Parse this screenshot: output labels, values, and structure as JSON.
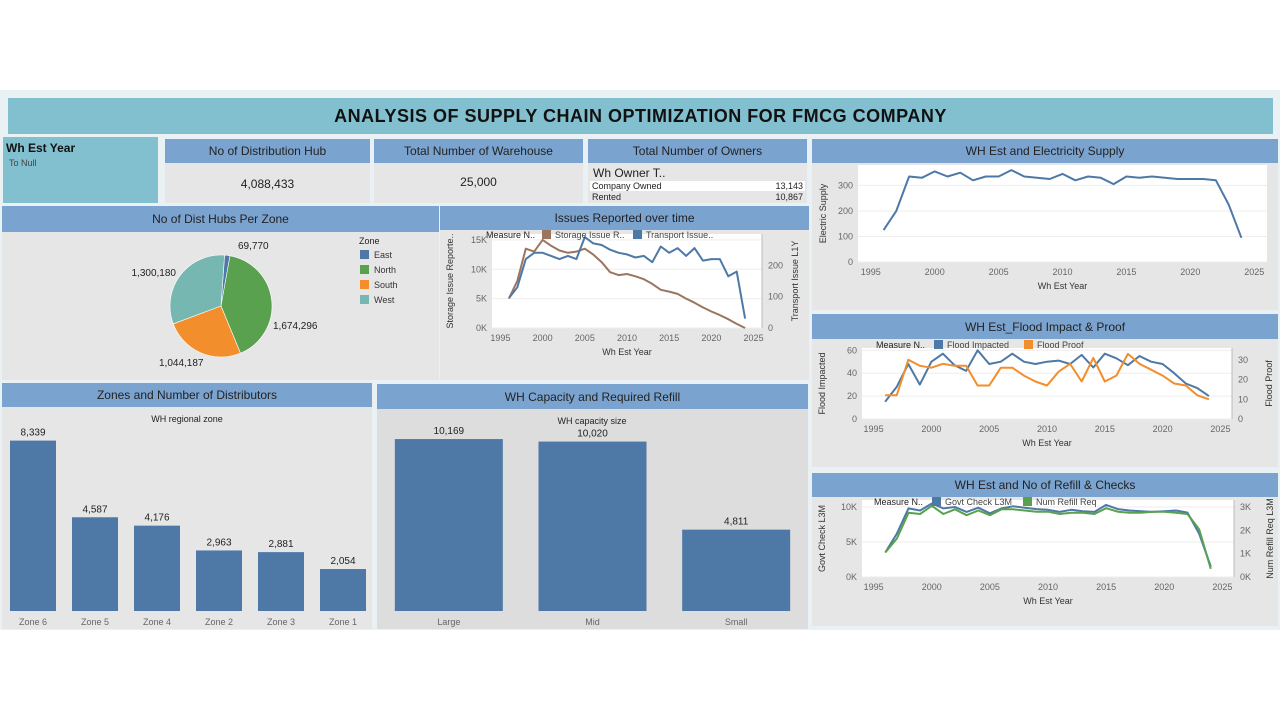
{
  "title": "ANALYSIS OF SUPPLY CHAIN OPTIMIZATION FOR FMCG COMPANY",
  "filter": {
    "label": "Wh Est Year",
    "value": "To Null"
  },
  "kpis": {
    "hub": {
      "title": "No of Distribution Hub",
      "value": "4,088,433"
    },
    "warehouse": {
      "title": "Total Number of Warehouse",
      "value": "25,000"
    },
    "owners": {
      "title": "Total Number of Owners",
      "subtitle": "Wh Owner T..",
      "rows": [
        {
          "label": "Company Owned",
          "value": "13,143",
          "fraction": 1.0
        },
        {
          "label": "Rented",
          "value": "10,867",
          "fraction": 0.827
        }
      ]
    }
  },
  "colors": {
    "blue": "#4e79a7",
    "orange": "#f28e2b",
    "green": "#59a14f",
    "teal": "#76b7b2",
    "brown": "#9c755f",
    "header": "#7ba3cf",
    "title_bg": "#82bfcf"
  },
  "chart_data": [
    {
      "id": "pie",
      "type": "pie",
      "title": "No of Dist Hubs Per Zone",
      "legend_title": "Zone",
      "legend_position": "right",
      "slices": [
        {
          "name": "East",
          "value": 69770,
          "label": "69,770",
          "color": "#4e79a7"
        },
        {
          "name": "North",
          "value": 1674296,
          "label": "1,674,296",
          "color": "#59a14f"
        },
        {
          "name": "South",
          "value": 1044187,
          "label": "1,044,187",
          "color": "#f28e2b"
        },
        {
          "name": "West",
          "value": 1300180,
          "label": "1,300,180",
          "color": "#76b7b2"
        }
      ]
    },
    {
      "id": "issues",
      "type": "line",
      "title": "Issues Reported over time",
      "legend_title": "Measure N..",
      "xlabel": "Wh Est Year",
      "ylabel": "Storage Issue Reporte..",
      "y2label": "Transport Issue L1Y",
      "xticks": [
        "1995",
        "2000",
        "2005",
        "2010",
        "2015",
        "2020",
        "2025"
      ],
      "yticks": [
        "0K",
        "5K",
        "10K",
        "15K"
      ],
      "y2ticks": [
        "0",
        "100",
        "200"
      ],
      "xlim": [
        1994,
        2026
      ],
      "ylim": [
        0,
        16000
      ],
      "y2lim": [
        0,
        300
      ],
      "x": [
        1996,
        1997,
        1998,
        1999,
        2000,
        2001,
        2002,
        2003,
        2004,
        2005,
        2006,
        2007,
        2008,
        2009,
        2010,
        2011,
        2012,
        2013,
        2014,
        2015,
        2016,
        2017,
        2018,
        2019,
        2020,
        2021,
        2022,
        2023,
        2024
      ],
      "series": [
        {
          "name": "Storage Issue R..",
          "axis": "left",
          "color": "#9c755f",
          "values": [
            5000,
            8000,
            13500,
            13000,
            15000,
            14000,
            13200,
            12800,
            13000,
            13500,
            12500,
            11200,
            9500,
            9000,
            9200,
            8800,
            8300,
            7500,
            6500,
            6200,
            5800,
            5000,
            4300,
            3500,
            2800,
            2200,
            1500,
            700,
            0
          ]
        },
        {
          "name": "Transport Issue..",
          "axis": "right",
          "color": "#4e79a7",
          "values": [
            95,
            130,
            220,
            240,
            240,
            230,
            220,
            230,
            220,
            290,
            270,
            265,
            250,
            240,
            235,
            225,
            230,
            210,
            260,
            240,
            255,
            230,
            255,
            215,
            220,
            220,
            165,
            180,
            30
          ]
        }
      ]
    },
    {
      "id": "electricity",
      "type": "line",
      "title": "WH Est and Electricity Supply",
      "xlabel": "Wh Est Year",
      "ylabel": "Electric Supply",
      "xticks": [
        "1995",
        "2000",
        "2005",
        "2010",
        "2015",
        "2020",
        "2025"
      ],
      "yticks": [
        "0",
        "100",
        "200",
        "300"
      ],
      "xlim": [
        1994,
        2026
      ],
      "ylim": [
        0,
        380
      ],
      "x": [
        1996,
        1997,
        1998,
        1999,
        2000,
        2001,
        2002,
        2003,
        2004,
        2005,
        2006,
        2007,
        2008,
        2009,
        2010,
        2011,
        2012,
        2013,
        2014,
        2015,
        2016,
        2017,
        2018,
        2019,
        2020,
        2021,
        2022,
        2023,
        2024
      ],
      "series": [
        {
          "name": "Electric Supply",
          "color": "#4e79a7",
          "values": [
            125,
            200,
            335,
            330,
            355,
            335,
            350,
            320,
            335,
            335,
            360,
            335,
            330,
            325,
            345,
            320,
            335,
            330,
            305,
            335,
            330,
            335,
            330,
            325,
            325,
            325,
            320,
            225,
            95
          ]
        }
      ]
    },
    {
      "id": "flood",
      "type": "line",
      "title": "WH Est_Flood Impact & Proof",
      "legend_title": "Measure N..",
      "xlabel": "Wh Est Year",
      "ylabel": "Flood Impacted",
      "y2label": "Flood Proof",
      "xticks": [
        "1995",
        "2000",
        "2005",
        "2010",
        "2015",
        "2020",
        "2025"
      ],
      "yticks": [
        "0",
        "20",
        "40",
        "60"
      ],
      "y2ticks": [
        "0",
        "10",
        "20",
        "30"
      ],
      "xlim": [
        1994,
        2026
      ],
      "ylim": [
        0,
        62
      ],
      "y2lim": [
        0,
        36
      ],
      "x": [
        1996,
        1997,
        1998,
        1999,
        2000,
        2001,
        2002,
        2003,
        2004,
        2005,
        2006,
        2007,
        2008,
        2009,
        2010,
        2011,
        2012,
        2013,
        2014,
        2015,
        2016,
        2017,
        2018,
        2019,
        2020,
        2021,
        2022,
        2023,
        2024
      ],
      "series": [
        {
          "name": "Flood Impacted",
          "axis": "left",
          "color": "#4e79a7",
          "values": [
            15,
            28,
            48,
            30,
            50,
            57,
            47,
            42,
            60,
            48,
            50,
            57,
            50,
            48,
            50,
            51,
            48,
            56,
            45,
            57,
            53,
            47,
            55,
            50,
            48,
            40,
            31,
            27,
            20
          ]
        },
        {
          "name": "Flood Proof",
          "axis": "right",
          "color": "#f28e2b",
          "values": [
            12,
            12,
            30,
            27,
            26,
            28,
            27,
            27,
            17,
            17,
            26,
            26,
            22,
            19,
            17,
            24,
            28,
            19,
            31,
            19,
            22,
            33,
            28,
            25,
            22,
            18,
            17,
            12,
            10
          ]
        }
      ]
    },
    {
      "id": "refill",
      "type": "line",
      "title": "WH Est and No of Refill & Checks",
      "legend_title": "Measure N..",
      "xlabel": "Wh Est Year",
      "ylabel": "Govt Check L3M",
      "y2label": "Num Refill Req L3M",
      "xticks": [
        "1995",
        "2000",
        "2005",
        "2010",
        "2015",
        "2020",
        "2025"
      ],
      "yticks": [
        "0K",
        "5K",
        "10K"
      ],
      "y2ticks": [
        "0K",
        "1K",
        "2K",
        "3K"
      ],
      "xlim": [
        1994,
        2026
      ],
      "ylim": [
        0,
        11000
      ],
      "y2lim": [
        0,
        3300
      ],
      "x": [
        1996,
        1997,
        1998,
        1999,
        2000,
        2001,
        2002,
        2003,
        2004,
        2005,
        2006,
        2007,
        2008,
        2009,
        2010,
        2011,
        2012,
        2013,
        2014,
        2015,
        2016,
        2017,
        2018,
        2019,
        2020,
        2021,
        2022,
        2023,
        2024
      ],
      "series": [
        {
          "name": "Govt Check L3M",
          "axis": "left",
          "color": "#4e79a7",
          "values": [
            3500,
            6200,
            9800,
            9500,
            10500,
            9800,
            10000,
            9300,
            9900,
            9100,
            9800,
            10100,
            9900,
            9700,
            9600,
            9300,
            9600,
            9400,
            9300,
            10300,
            9700,
            9500,
            9400,
            9300,
            9400,
            9500,
            9200,
            6200,
            1500
          ]
        },
        {
          "name": "Num Refill Req",
          "axis": "right",
          "color": "#59a14f",
          "values": [
            1050,
            1650,
            2750,
            2700,
            3050,
            2700,
            2900,
            2650,
            2850,
            2650,
            2900,
            2900,
            2850,
            2800,
            2800,
            2700,
            2750,
            2750,
            2700,
            2950,
            2800,
            2750,
            2750,
            2800,
            2800,
            2750,
            2700,
            2050,
            350
          ]
        }
      ]
    },
    {
      "id": "zones",
      "type": "bar",
      "title": "Zones and Number of Distributors",
      "subtitle": "WH regional zone",
      "categories": [
        "Zone 6",
        "Zone 5",
        "Zone 4",
        "Zone 2",
        "Zone 3",
        "Zone 1"
      ],
      "values": [
        8339,
        4587,
        4176,
        2963,
        2881,
        2054
      ],
      "labels": [
        "8,339",
        "4,587",
        "4,176",
        "2,963",
        "2,881",
        "2,054"
      ],
      "ylim": [
        0,
        9200
      ]
    },
    {
      "id": "capacity",
      "type": "bar",
      "title": "WH Capacity and Required Refill",
      "subtitle": "WH capacity size",
      "categories": [
        "Large",
        "Mid",
        "Small"
      ],
      "values": [
        10169,
        10020,
        4811
      ],
      "labels": [
        "10,169",
        "10,020",
        "4,811"
      ],
      "ylim": [
        0,
        11000
      ]
    }
  ]
}
